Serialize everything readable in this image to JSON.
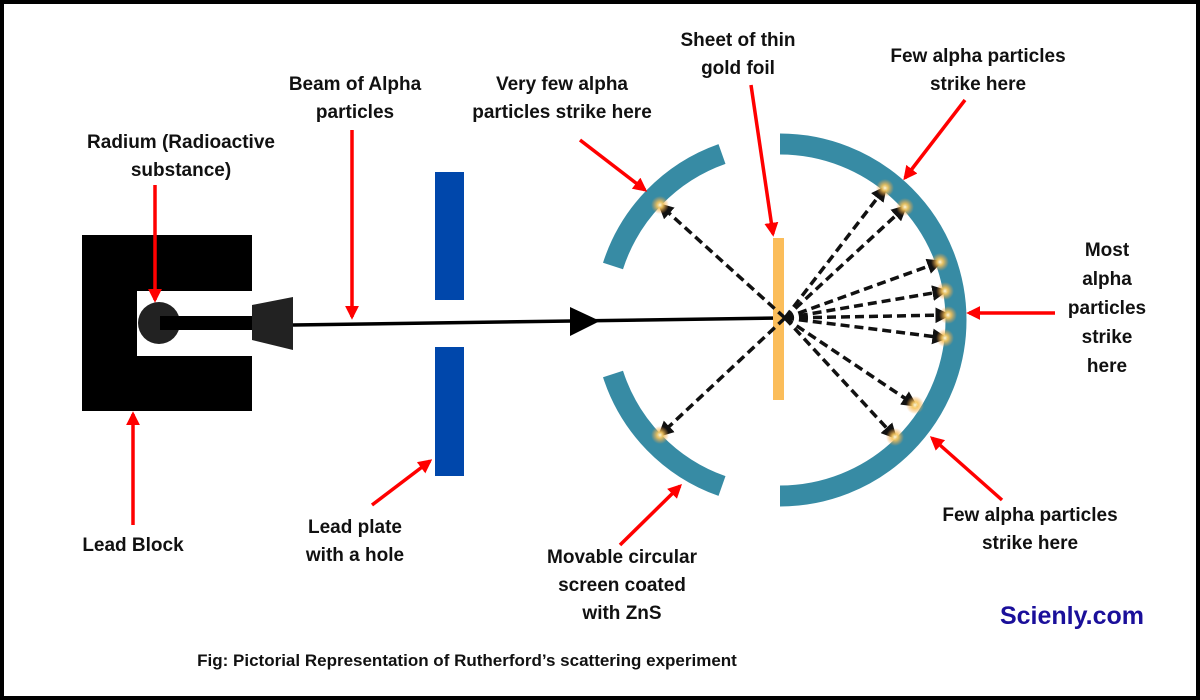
{
  "labels": {
    "radium": [
      "Radium (Radioactive",
      "substance)"
    ],
    "beam": [
      "Beam of Alpha",
      "particles"
    ],
    "very_few": [
      "Very few alpha",
      "particles strike here"
    ],
    "gold_foil": [
      "Sheet of thin",
      "gold foil"
    ],
    "few_top": [
      "Few alpha particles",
      "strike here"
    ],
    "most": [
      "Most",
      "alpha",
      "particles",
      "strike",
      "here"
    ],
    "lead_block": [
      "Lead Block"
    ],
    "lead_plate": [
      "Lead plate",
      "with a hole"
    ],
    "screen": [
      "Movable circular",
      "screen coated",
      "with ZnS"
    ],
    "few_bottom": [
      "Few alpha particles",
      "strike here"
    ]
  },
  "brand": "Scienly.com",
  "caption": "Fig: Pictorial Representation of Rutherford’s scattering experiment",
  "colors": {
    "lead_block": "#000000",
    "lead_plate": "#0047ab",
    "screen": "#378ba4",
    "gold_foil": "#fbbd5a",
    "pointer_arrow": "#ff0000",
    "brand": "#1a0f9a"
  }
}
